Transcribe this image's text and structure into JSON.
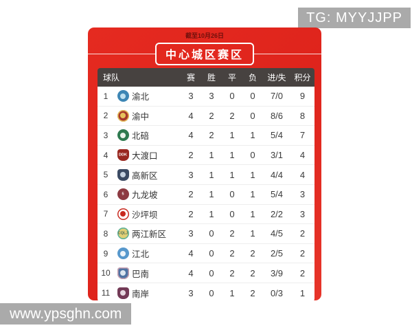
{
  "watermarks": {
    "top_right": "TG: MYYJJPP",
    "bottom_left": "www.ypsghn.com"
  },
  "card": {
    "date_note": "截至10月26日",
    "title": "中心城区赛区",
    "accent_color": "#e2241d",
    "header_bg": "#474240"
  },
  "table": {
    "columns": [
      "球队",
      "赛",
      "胜",
      "平",
      "负",
      "进/失",
      "积分"
    ],
    "rows": [
      {
        "rank": "1",
        "team": "渝北",
        "played": "3",
        "won": "3",
        "drawn": "0",
        "lost": "0",
        "goals": "7/0",
        "points": "9",
        "logo": {
          "shape": "circle",
          "bg": "#3d86b5",
          "fg": "#bfe0f0",
          "text": "",
          "tc": "#ffffff",
          "border": ""
        }
      },
      {
        "rank": "2",
        "team": "渝中",
        "played": "4",
        "won": "2",
        "drawn": "2",
        "lost": "0",
        "goals": "8/6",
        "points": "8",
        "logo": {
          "shape": "circle",
          "bg": "#a8392b",
          "fg": "#e6c25c",
          "text": "",
          "tc": "#ffffff",
          "border": "#e6c25c"
        }
      },
      {
        "rank": "3",
        "team": "北碚",
        "played": "4",
        "won": "2",
        "drawn": "1",
        "lost": "1",
        "goals": "5/4",
        "points": "7",
        "logo": {
          "shape": "circle",
          "bg": "#2e7a4f",
          "fg": "#eaf3ea",
          "text": "",
          "tc": "#ffffff",
          "border": ""
        }
      },
      {
        "rank": "4",
        "team": "大渡口",
        "played": "2",
        "won": "1",
        "drawn": "1",
        "lost": "0",
        "goals": "3/1",
        "points": "4",
        "logo": {
          "shape": "shield",
          "bg": "#992720",
          "fg": "",
          "text": "DDK",
          "tc": "#ffffff",
          "border": ""
        }
      },
      {
        "rank": "5",
        "team": "高新区",
        "played": "3",
        "won": "1",
        "drawn": "1",
        "lost": "1",
        "goals": "4/4",
        "points": "4",
        "logo": {
          "shape": "shield",
          "bg": "#3b4a63",
          "fg": "#c6d2e0",
          "text": "",
          "tc": "#ffffff",
          "border": ""
        }
      },
      {
        "rank": "6",
        "team": "九龙坡",
        "played": "2",
        "won": "1",
        "drawn": "0",
        "lost": "1",
        "goals": "5/4",
        "points": "3",
        "logo": {
          "shape": "circle",
          "bg": "#8d3a42",
          "fg": "",
          "text": "5",
          "tc": "#ffffff",
          "border": ""
        }
      },
      {
        "rank": "7",
        "team": "沙坪坝",
        "played": "2",
        "won": "1",
        "drawn": "0",
        "lost": "1",
        "goals": "2/2",
        "points": "3",
        "logo": {
          "shape": "circle",
          "bg": "#ffffff",
          "fg": "#c8291f",
          "text": "",
          "tc": "#ffffff",
          "border": "#c8291f"
        }
      },
      {
        "rank": "8",
        "team": "两江新区",
        "played": "3",
        "won": "0",
        "drawn": "2",
        "lost": "1",
        "goals": "4/5",
        "points": "2",
        "logo": {
          "shape": "circle",
          "bg": "#e0cf76",
          "fg": "",
          "text": "CQLJ",
          "tc": "#4a6c5a",
          "border": "#57b09a"
        }
      },
      {
        "rank": "9",
        "team": "江北",
        "played": "4",
        "won": "0",
        "drawn": "2",
        "lost": "2",
        "goals": "2/5",
        "points": "2",
        "logo": {
          "shape": "circle",
          "bg": "#5798cc",
          "fg": "#eef4fa",
          "text": "",
          "tc": "#ffffff",
          "border": ""
        }
      },
      {
        "rank": "10",
        "team": "巴南",
        "played": "4",
        "won": "0",
        "drawn": "2",
        "lost": "2",
        "goals": "3/9",
        "points": "2",
        "logo": {
          "shape": "shield",
          "bg": "#5073a3",
          "fg": "#dde6f0",
          "text": "",
          "tc": "#ffffff",
          "border": "#c9a0b0"
        }
      },
      {
        "rank": "11",
        "team": "南岸",
        "played": "3",
        "won": "0",
        "drawn": "1",
        "lost": "2",
        "goals": "0/3",
        "points": "1",
        "logo": {
          "shape": "shield",
          "bg": "#733a56",
          "fg": "#e6d8e0",
          "text": "",
          "tc": "#ffffff",
          "border": ""
        }
      }
    ]
  }
}
